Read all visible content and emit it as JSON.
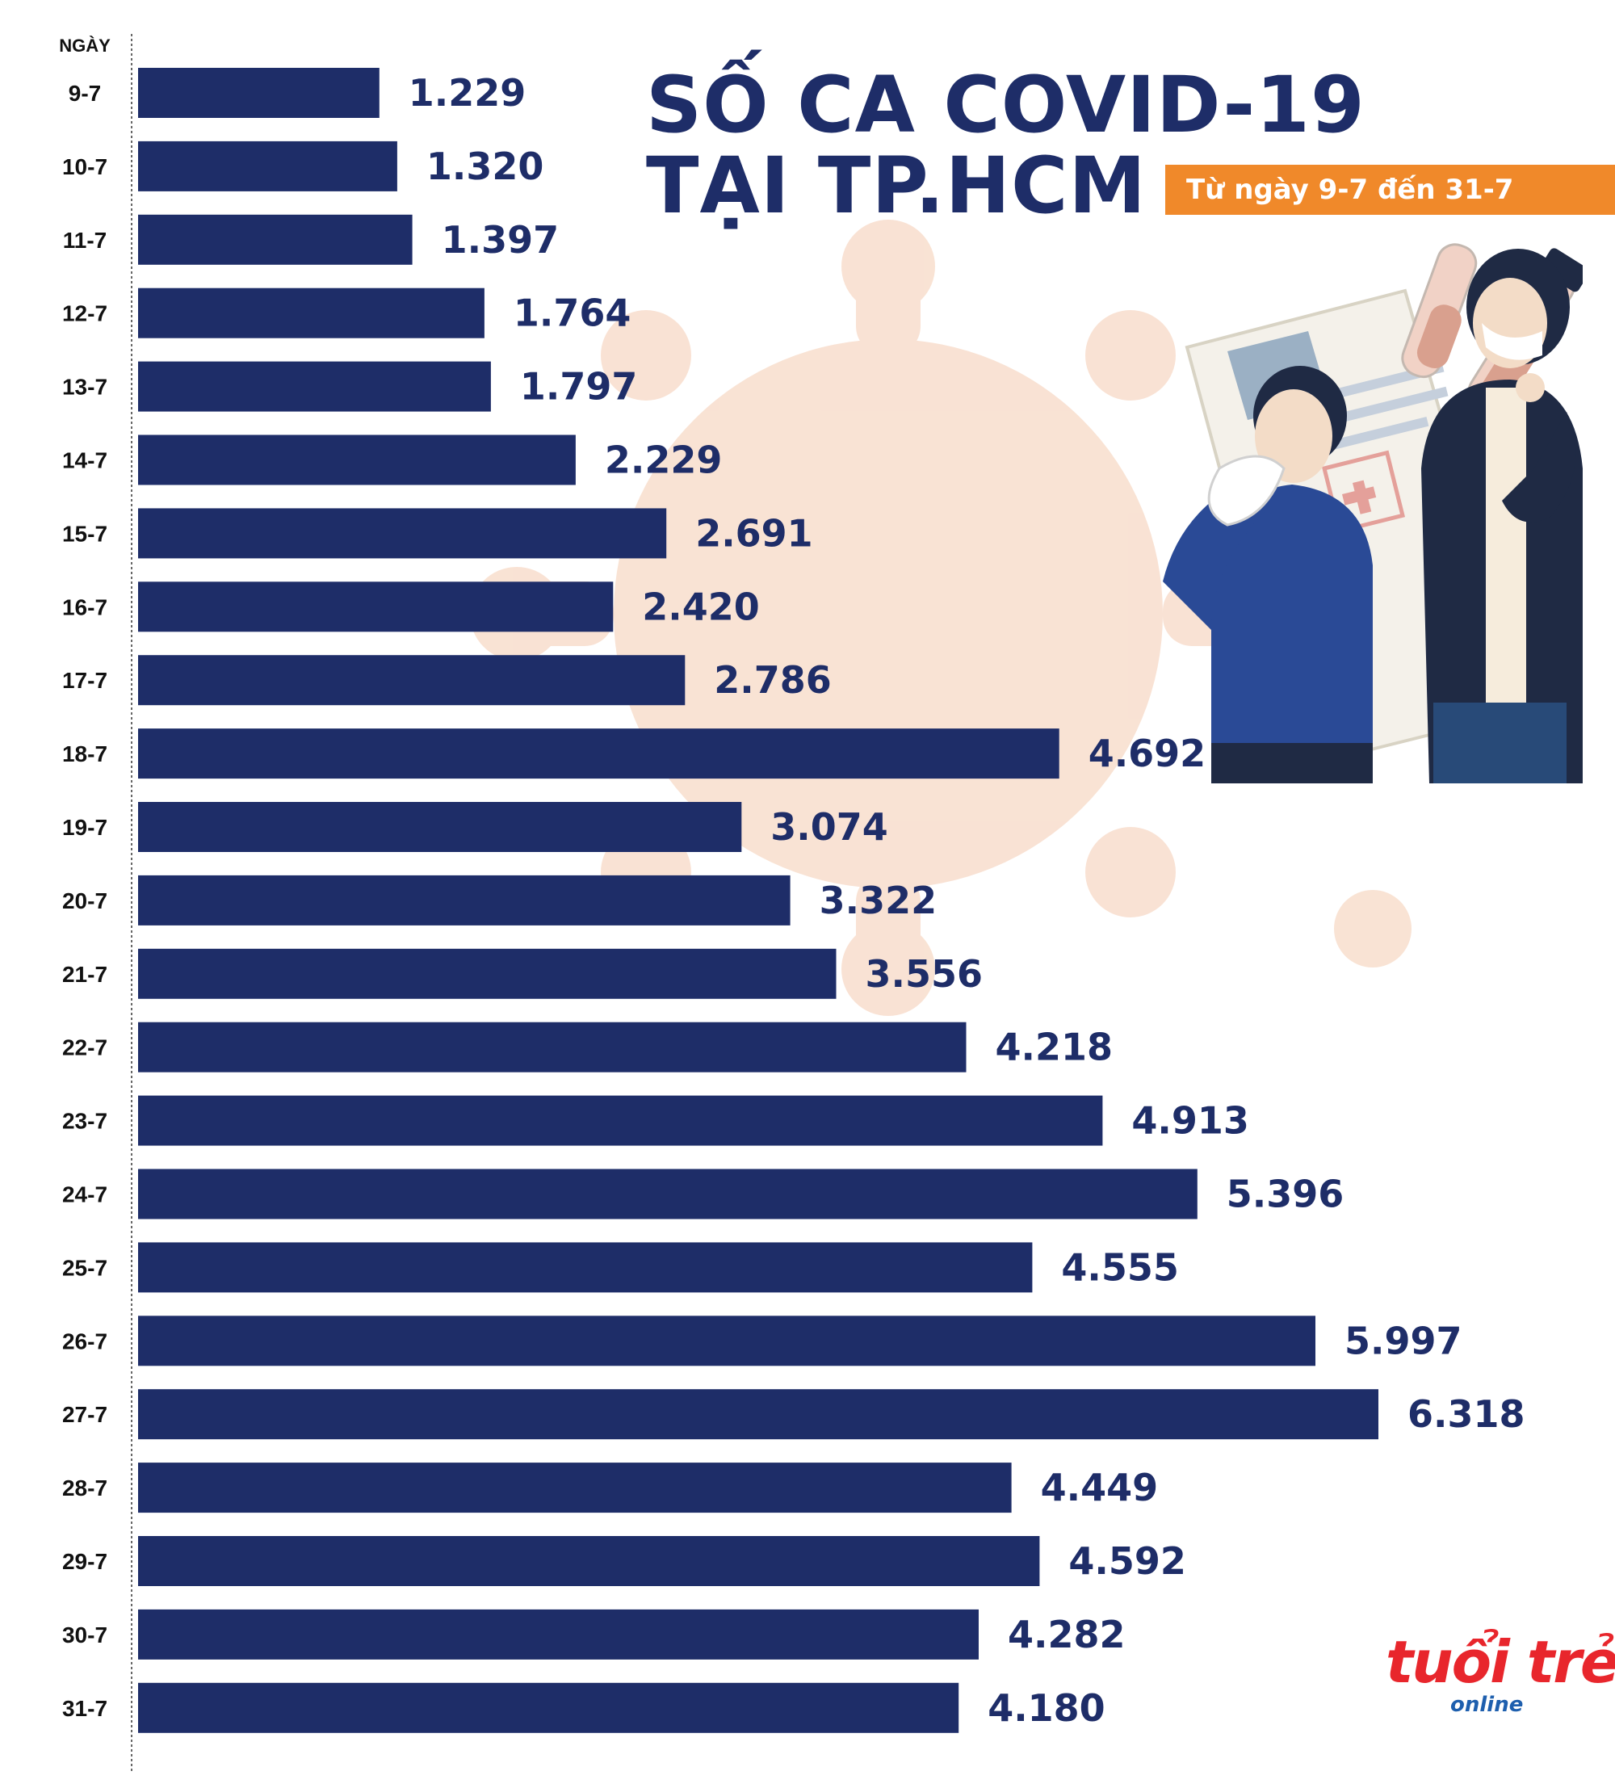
{
  "title_line_1": "SỐ CA COVID-19",
  "title_line_2": "TẠI TP.HCM",
  "subtitle": "Từ ngày 9-7 đến 31-7",
  "logo": {
    "text": "tuổi trẻ",
    "sub_text": "online"
  },
  "colors": {
    "bar": "#1e2d68",
    "title": "#1e2d68",
    "subtitle_bg": "#f0892a",
    "virus_watermark": "#f7d9c6",
    "logo_red": "#e8262c",
    "logo_blue": "#1e5fae"
  },
  "chart_data": {
    "type": "bar",
    "orientation": "horizontal",
    "ylabel": "NGÀY",
    "categories": [
      "9-7",
      "10-7",
      "11-7",
      "12-7",
      "13-7",
      "14-7",
      "15-7",
      "16-7",
      "17-7",
      "18-7",
      "19-7",
      "20-7",
      "21-7",
      "22-7",
      "23-7",
      "24-7",
      "25-7",
      "26-7",
      "27-7",
      "28-7",
      "29-7",
      "30-7",
      "31-7"
    ],
    "values": [
      1229,
      1320,
      1397,
      1764,
      1797,
      2229,
      2691,
      2420,
      2786,
      4692,
      3074,
      3322,
      3556,
      4218,
      4913,
      5396,
      4555,
      5997,
      6318,
      4449,
      4592,
      4282,
      4180
    ],
    "value_labels": [
      "1.229",
      "1.320",
      "1.397",
      "1.764",
      "1.797",
      "2.229",
      "2.691",
      "2.420",
      "2.786",
      "4.692",
      "3.074",
      "3.322",
      "3.556",
      "4.218",
      "4.913",
      "5.396",
      "4.555",
      "5.997",
      "6.318",
      "4.449",
      "4.592",
      "4.282",
      "4.180"
    ],
    "xlim": [
      0,
      6318
    ],
    "grid": false,
    "legend": "none"
  }
}
